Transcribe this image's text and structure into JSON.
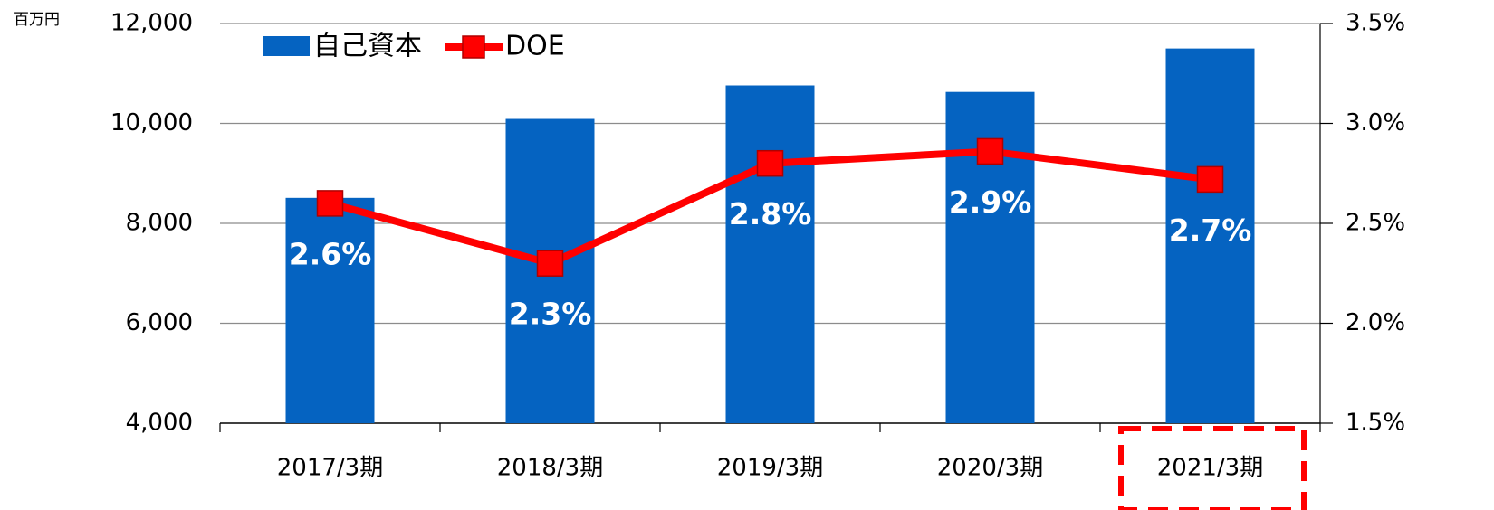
{
  "chart_data": {
    "type": "bar-line",
    "y_unit": "百万円",
    "categories": [
      "2017/3期",
      "2018/3期",
      "2019/3期",
      "2020/3期",
      "2021/3期"
    ],
    "series": [
      {
        "name": "自己資本",
        "type": "bar",
        "color": "#0563c1",
        "axis": "y",
        "values": [
          8510,
          10090,
          10760,
          10630,
          11500
        ]
      },
      {
        "name": "DOE",
        "type": "line",
        "color": "#ff0000",
        "axis": "y2",
        "values": [
          2.6,
          2.3,
          2.8,
          2.86,
          2.72
        ],
        "value_labels": [
          "2.6%",
          "2.3%",
          "2.8%",
          "2.9%",
          "2.7%"
        ]
      }
    ],
    "ylim": [
      4000,
      12000
    ],
    "yticks": [
      {
        "value": 4000,
        "label": "4,000"
      },
      {
        "value": 6000,
        "label": "6,000"
      },
      {
        "value": 8000,
        "label": "8,000"
      },
      {
        "value": 10000,
        "label": "10,000"
      },
      {
        "value": 12000,
        "label": "12,000"
      }
    ],
    "y2lim": [
      1.5,
      3.5
    ],
    "y2ticks": [
      {
        "value": 1.5,
        "label": "1.5%"
      },
      {
        "value": 2.0,
        "label": "2.0%"
      },
      {
        "value": 2.5,
        "label": "2.5%"
      },
      {
        "value": 3.0,
        "label": "3.0%"
      },
      {
        "value": 3.5,
        "label": "3.5%"
      }
    ],
    "grid": true,
    "legend": "top-left"
  }
}
